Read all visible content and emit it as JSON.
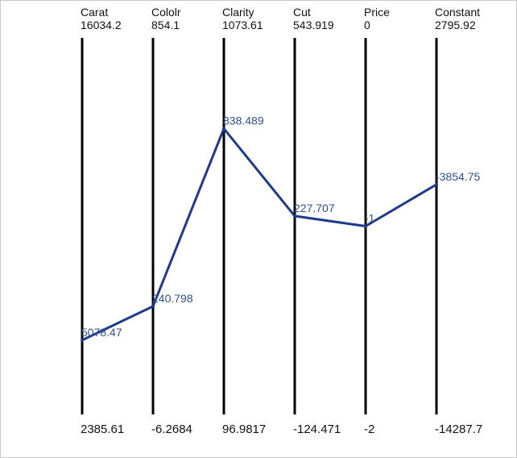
{
  "chart_data": {
    "type": "parallel-coordinates",
    "axes": [
      {
        "name": "Carat",
        "max": "16034.2",
        "min": "2385.61"
      },
      {
        "name": "Cololr",
        "max": "854.1",
        "min": "-6.2684"
      },
      {
        "name": "Clarity",
        "max": "1073.61",
        "min": "96.9817"
      },
      {
        "name": "Cut",
        "max": "543.919",
        "min": "-124.471"
      },
      {
        "name": "Price",
        "max": "0",
        "min": "-2"
      },
      {
        "name": "Constant",
        "max": "2795.92",
        "min": "-14287.7"
      }
    ],
    "series": [
      {
        "values": [
          5078.47,
          240.798,
          838.489,
          227.707,
          -1,
          -3854.75
        ],
        "labels": [
          "5078.47",
          "240.798",
          "838.489",
          "227.707",
          "-1",
          "-3854.75"
        ]
      }
    ],
    "colors": {
      "line": "#1f3a8a",
      "label": "#2f4f8f",
      "axis": "#000000"
    }
  }
}
